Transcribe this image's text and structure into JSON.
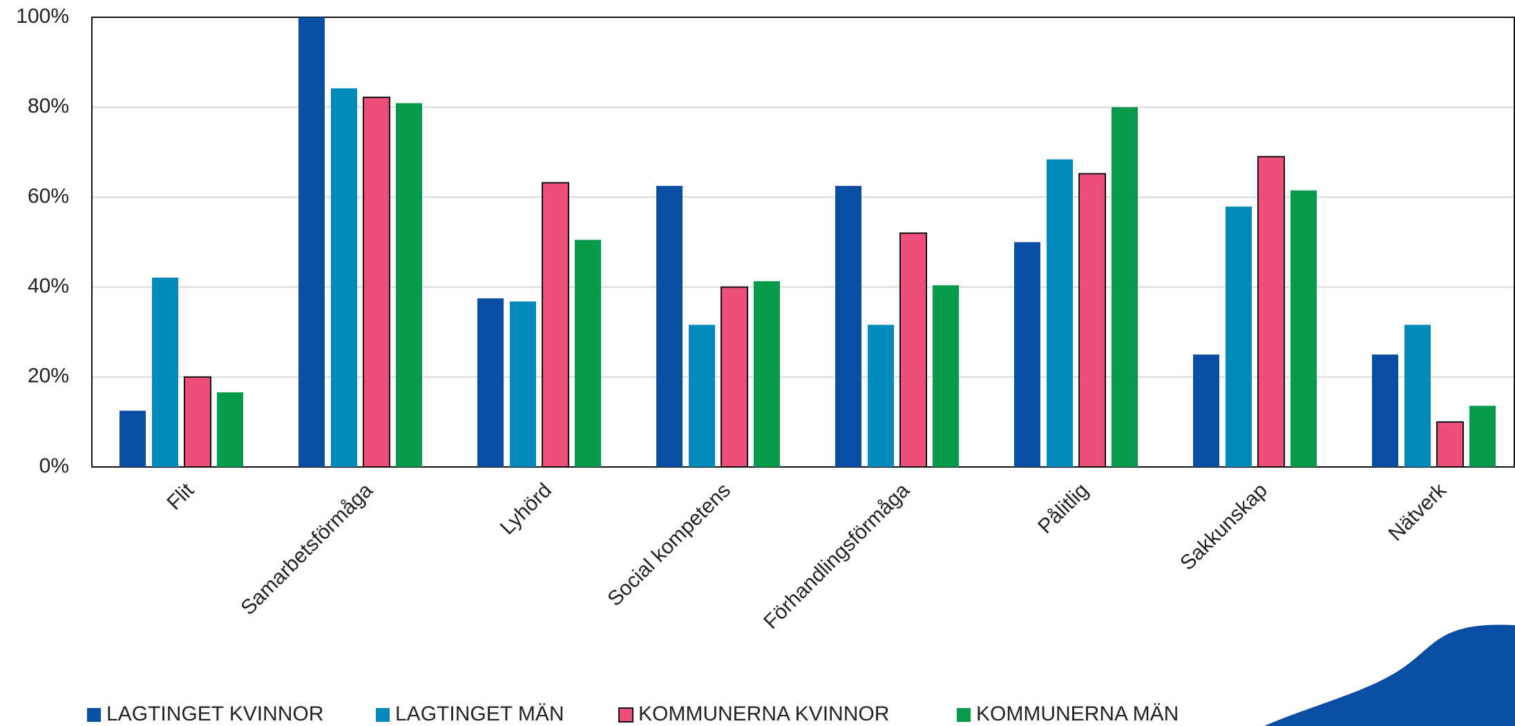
{
  "chart_data": {
    "type": "bar",
    "categories": [
      "Flit",
      "Samarbetsförmåga",
      "Lyhörd",
      "Social kompetens",
      "Förhandlingsförmåga",
      "Pålitlig",
      "Sakkunskap",
      "Nätverk"
    ],
    "series": [
      {
        "name": "LAGTINGET KVINNOR",
        "color": "#0a4ea3",
        "values": [
          12.5,
          100,
          37.5,
          62.5,
          62.5,
          50,
          25,
          25
        ]
      },
      {
        "name": "LAGTINGET MÄN",
        "color": "#0089bb",
        "values": [
          42.1,
          84.2,
          36.8,
          31.6,
          31.6,
          68.4,
          57.9,
          31.6
        ]
      },
      {
        "name": "KOMMUNERNA KVINNOR",
        "color": "#ee4f7a",
        "values": [
          20,
          82.2,
          63.2,
          40,
          52,
          65.2,
          69,
          10
        ]
      },
      {
        "name": "KOMMUNERNA MÄN",
        "color": "#079a4a",
        "values": [
          16.6,
          80.9,
          50.5,
          41.3,
          40.4,
          80,
          61.5,
          13.6
        ]
      }
    ],
    "ylim": [
      0,
      100
    ],
    "yticks": [
      {
        "value": 0,
        "label": "0%"
      },
      {
        "value": 20,
        "label": "20%"
      },
      {
        "value": 40,
        "label": "40%"
      },
      {
        "value": 60,
        "label": "60%"
      },
      {
        "value": 80,
        "label": "80%"
      },
      {
        "value": 100,
        "label": "100%"
      }
    ],
    "grid": true,
    "legend": "bottom"
  }
}
